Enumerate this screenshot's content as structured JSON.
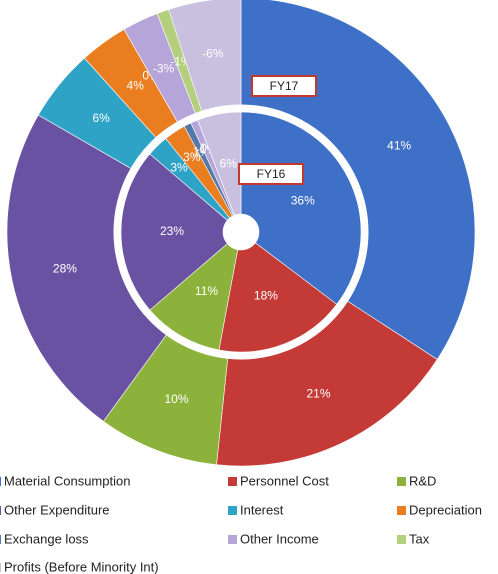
{
  "chart_data": {
    "type": "nested_pie",
    "categories": [
      "Material Consumption",
      "Personnel Cost",
      "R&D",
      "Other Expenditure",
      "Interest",
      "Depreciation",
      "Exchange loss",
      "Other Income",
      "Tax",
      "Profits (Before Minority Int)"
    ],
    "colors": [
      "#3d70c6",
      "#c43a36",
      "#8cb23c",
      "#6a52a3",
      "#2fa3c6",
      "#ea7d1f",
      "#5478a8",
      "#b6a5d8",
      "#b4cf7d",
      "#c9c0e0"
    ],
    "series": [
      {
        "name": "FY17",
        "values": [
          41,
          21,
          10,
          28,
          6,
          4,
          0,
          -3,
          -1,
          -6
        ],
        "value_labels": [
          "41%",
          "21%",
          "10%",
          "28%",
          "6%",
          "4%",
          "0%",
          "-3%",
          "-1%",
          "-6%"
        ]
      },
      {
        "name": "FY16",
        "values": [
          36,
          18,
          11,
          23,
          3,
          3,
          1,
          -1,
          0,
          6
        ],
        "value_labels": [
          "36%",
          "18%",
          "11%",
          "23%",
          "3%",
          "3%",
          "1%",
          "-1%",
          "0%",
          "6%"
        ]
      }
    ]
  }
}
